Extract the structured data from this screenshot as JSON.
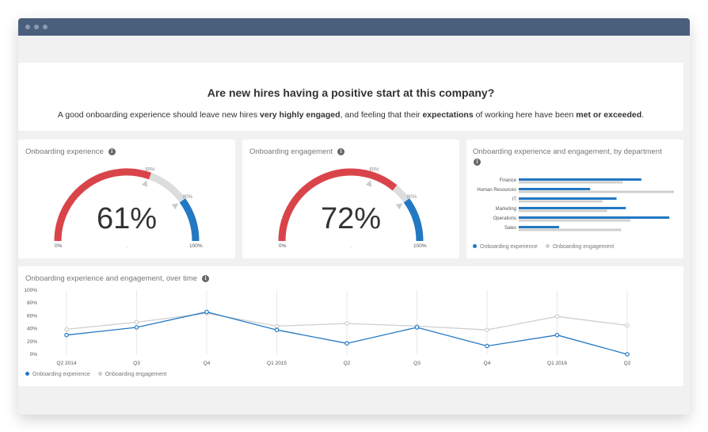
{
  "header": {
    "title": "Are new hires having a positive start at this company?",
    "subtitle_parts": [
      "A good onboarding experience should leave new hires ",
      "very highly engaged",
      ", and feeling that their ",
      "expectations",
      " of working here have been ",
      "met or exceeded",
      "."
    ]
  },
  "gauges": [
    {
      "title": "Onboarding experience",
      "value_text": "61%",
      "value": 61,
      "marker1_label": "60%",
      "marker2_label": "80%",
      "min_label": "0%",
      "max_label": "100%",
      "mid_label": "."
    },
    {
      "title": "Onboarding engagement",
      "value_text": "72%",
      "value": 72,
      "marker1_label": "60%",
      "marker2_label": "80%",
      "min_label": "0%",
      "max_label": "100%",
      "mid_label": "."
    }
  ],
  "colors": {
    "blue": "#2278c2",
    "red": "#d9444a",
    "gray": "#dddddd",
    "line_gray": "#cfcfcf",
    "titlebar": "#4a5f7c"
  },
  "icons": [
    "info-icon"
  ],
  "chart_data": [
    {
      "type": "bar",
      "title": "Onboarding experience and engagement, by department",
      "categories": [
        "Finance",
        "Human Resources",
        "IT",
        "Marketing",
        "Operations",
        "Sales"
      ],
      "series": [
        {
          "name": "Onboarding experience",
          "values": [
            79,
            46,
            63,
            69,
            97,
            26
          ]
        },
        {
          "name": "Onboarding engagement",
          "values": [
            67,
            100,
            54,
            57,
            72,
            66
          ]
        }
      ],
      "xlim": [
        0,
        100
      ],
      "legend": "bottom-left"
    },
    {
      "type": "line",
      "title": "Onboarding experience and engagement, over time",
      "categories": [
        "Q2 2014",
        "Q3",
        "Q4",
        "Q1 2015",
        "Q2",
        "Q3",
        "Q4",
        "Q1 2016",
        "Q2"
      ],
      "series": [
        {
          "name": "Onboarding experience",
          "values": [
            30,
            42,
            66,
            38,
            17,
            42,
            13,
            30,
            0
          ]
        },
        {
          "name": "Onboarding engagement",
          "values": [
            39,
            50,
            64,
            44,
            48,
            44,
            38,
            59,
            45
          ]
        }
      ],
      "y_ticks": [
        "100%",
        "80%",
        "60%",
        "40%",
        "20%",
        "0%"
      ],
      "ylim": [
        0,
        100
      ],
      "grid": "vertical",
      "legend": "bottom-left"
    }
  ]
}
